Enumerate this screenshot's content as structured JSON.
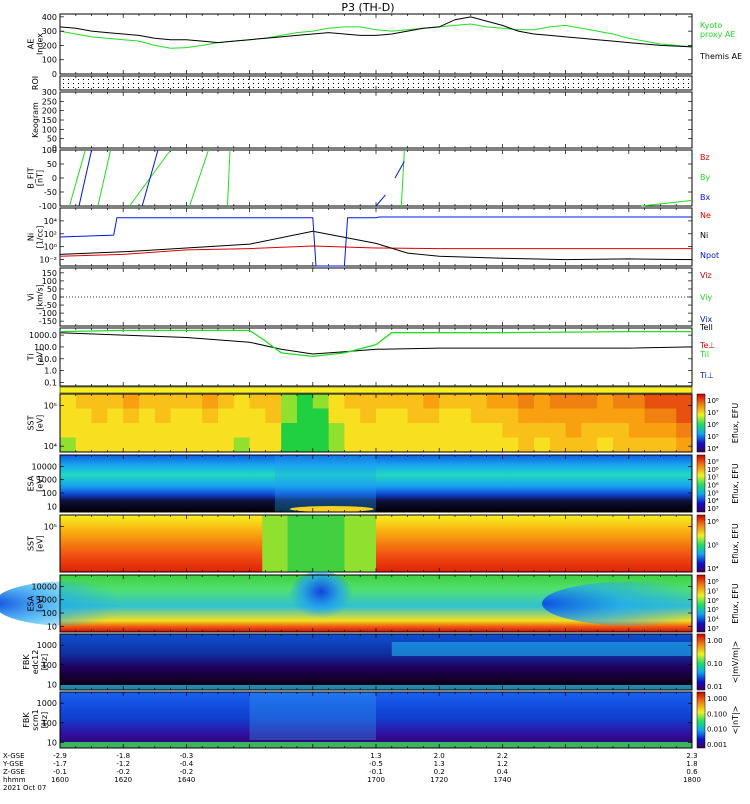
{
  "title": "P3 (TH-D)",
  "colors": {
    "red": "#e00000",
    "green": "#22dd22",
    "blue": "#0018d8",
    "black": "#000000"
  },
  "chart_data": [
    {
      "type": "line",
      "panel": "ae",
      "ylabel": "AE Index",
      "yticks": [
        "400",
        "300",
        "200",
        "100",
        "0"
      ],
      "ylim": [
        0,
        420
      ],
      "series": [
        {
          "name": "Kyoto proxy AE",
          "color": "green",
          "x": [
            1600,
            1605,
            1610,
            1615,
            1620,
            1625,
            1630,
            1635,
            1640,
            1645,
            1650,
            1655,
            1660,
            1665,
            1670,
            1675,
            1680,
            1685,
            1690,
            1695,
            1700,
            1705,
            1710,
            1715,
            1720,
            1725,
            1730,
            1735,
            1740,
            1745,
            1750,
            1755,
            1760,
            1765,
            1770,
            1775,
            1780,
            1785,
            1790,
            1795,
            1800
          ],
          "y": [
            300,
            280,
            260,
            250,
            240,
            230,
            200,
            180,
            185,
            200,
            220,
            230,
            240,
            250,
            270,
            290,
            300,
            320,
            330,
            330,
            310,
            300,
            310,
            320,
            330,
            340,
            350,
            330,
            320,
            310,
            310,
            330,
            340,
            320,
            300,
            280,
            250,
            230,
            210,
            200,
            190
          ]
        },
        {
          "name": "Themis AE",
          "color": "black",
          "x": [
            1600,
            1605,
            1610,
            1615,
            1620,
            1625,
            1630,
            1635,
            1640,
            1645,
            1650,
            1655,
            1660,
            1665,
            1670,
            1675,
            1680,
            1685,
            1690,
            1695,
            1700,
            1705,
            1710,
            1715,
            1720,
            1725,
            1730,
            1735,
            1740,
            1745,
            1750,
            1755,
            1760,
            1765,
            1770,
            1775,
            1780,
            1785,
            1790,
            1795,
            1800
          ],
          "y": [
            330,
            320,
            300,
            290,
            280,
            270,
            250,
            240,
            240,
            230,
            220,
            230,
            240,
            250,
            260,
            270,
            280,
            290,
            280,
            270,
            270,
            280,
            300,
            320,
            330,
            380,
            400,
            370,
            340,
            300,
            280,
            270,
            260,
            250,
            240,
            230,
            220,
            210,
            200,
            195,
            190
          ]
        }
      ]
    },
    {
      "type": "scatter",
      "panel": "roi",
      "ylabel": "ROI"
    },
    {
      "type": "line",
      "panel": "keogram",
      "ylabel": "Keogram",
      "yticks": [
        "300",
        "250",
        "200",
        "150",
        "100",
        "50",
        "0"
      ],
      "ylim": [
        0,
        300
      ]
    },
    {
      "type": "line",
      "panel": "bfit",
      "ylabel": "B_FIT [nT]",
      "yticks": [
        "100",
        "50",
        "0",
        "-50",
        "-100"
      ],
      "ylim": [
        -100,
        100
      ],
      "series": [
        {
          "name": "Bz",
          "color": "red",
          "x": [],
          "y": []
        },
        {
          "name": "By",
          "color": "green",
          "x": [
            1603,
            1608,
            1612,
            1616,
            1622,
            1635,
            1641,
            1647,
            1653,
            1653.8,
            1708,
            1709,
            1784,
            1800
          ],
          "y": [
            -100,
            100,
            -100,
            100,
            -100,
            100,
            -100,
            100,
            -100,
            100,
            -100,
            100,
            -100,
            -80
          ]
        },
        {
          "name": "Bx",
          "color": "blue",
          "x": [
            1606,
            1610,
            1626,
            1631,
            1700,
            1703,
            1706,
            1709,
            1712
          ],
          "y": [
            -100,
            100,
            -100,
            100,
            -100,
            -60,
            0,
            60,
            100
          ]
        }
      ]
    },
    {
      "type": "line",
      "panel": "density",
      "ylabel": "Ni [1/cc]",
      "yticks": [
        "10⁴",
        "10²",
        "10⁰",
        "10⁻²"
      ],
      "ylim_log10": [
        -3,
        6
      ],
      "series": [
        {
          "name": "Ne",
          "color": "red",
          "x": [
            1600,
            1620,
            1640,
            1660,
            1680,
            1700,
            1720,
            1740,
            1760,
            1780,
            1800
          ],
          "y_log10": [
            -1.5,
            -1.2,
            -0.5,
            -0.3,
            0.1,
            -0.2,
            -0.3,
            -0.3,
            -0.3,
            -0.3,
            -0.3
          ]
        },
        {
          "name": "Ni",
          "color": "black",
          "x": [
            1600,
            1620,
            1640,
            1660,
            1680,
            1700,
            1710,
            1720,
            1740,
            1760,
            1780,
            1800
          ],
          "y_log10": [
            -1.2,
            -0.8,
            -0.2,
            0.4,
            2.4,
            0.5,
            -1.0,
            -1.5,
            -1.8,
            -2.0,
            -1.9,
            -2.0
          ]
        },
        {
          "name": "Npot",
          "color": "blue",
          "x": [
            1600,
            1617,
            1618,
            1680,
            1681,
            1690,
            1691,
            1700,
            1701,
            1800
          ],
          "y_log10": [
            1.5,
            1.8,
            4.5,
            4.5,
            -3,
            -3,
            4.5,
            4.5,
            4.6,
            4.6
          ]
        }
      ]
    },
    {
      "type": "line",
      "panel": "velocity",
      "ylabel": "Vi [km/s]",
      "yticks": [
        "150",
        "100",
        "50",
        "0",
        "-50",
        "-100",
        "-150"
      ],
      "ylim": [
        -180,
        180
      ],
      "series": [
        {
          "name": "Viz",
          "color": "red",
          "x": [],
          "y": []
        },
        {
          "name": "Viy",
          "color": "green",
          "x": [],
          "y": []
        },
        {
          "name": "Vix",
          "color": "blue",
          "x": [],
          "y": []
        }
      ]
    },
    {
      "type": "line",
      "panel": "temperature",
      "ylabel": "Ti [eV]",
      "yticks": [
        "1000.0",
        "100.0",
        "10.0",
        "1.0",
        "0.1"
      ],
      "ylim_log10": [
        -1.3,
        3.6
      ],
      "series": [
        {
          "name": "Tell",
          "color": "black",
          "x": [
            1600,
            1620,
            1640,
            1660,
            1670,
            1680,
            1690,
            1700,
            1720,
            1740,
            1760,
            1780,
            1800
          ],
          "y_log10": [
            3.2,
            3.0,
            2.8,
            2.4,
            1.8,
            1.4,
            1.6,
            1.8,
            1.9,
            1.9,
            1.9,
            1.9,
            2.0
          ]
        },
        {
          "name": "Te⊥",
          "color": "red",
          "x": [],
          "y_log10": []
        },
        {
          "name": "Til",
          "color": "green",
          "x": [
            1600,
            1620,
            1660,
            1665,
            1670,
            1680,
            1690,
            1700,
            1705,
            1720,
            1740,
            1760,
            1780,
            1800
          ],
          "y_log10": [
            3.3,
            3.4,
            3.4,
            2.5,
            1.5,
            1.2,
            1.5,
            2.2,
            3.2,
            3.2,
            3.2,
            3.25,
            3.3,
            3.3
          ]
        },
        {
          "name": "Ti⊥",
          "color": "blue",
          "x": [],
          "y_log10": []
        }
      ]
    },
    {
      "type": "heatmap",
      "panel": "sst-electron",
      "ylabel": "SST [eV]",
      "yticks": [
        "10⁵",
        "10⁴"
      ],
      "colorbar": {
        "label": "Eflux, EFU",
        "ticks": [
          "10⁸",
          "10⁷",
          "10⁶",
          "10⁵",
          "10⁴"
        ]
      },
      "timeline_fill": [
        0.55,
        0.6,
        0.62,
        0.6,
        0.65,
        0.6,
        0.62,
        0.58,
        0.6,
        0.65,
        0.6,
        0.55,
        0.6,
        0.62,
        0.4,
        0.3,
        0.35,
        0.5,
        0.6,
        0.62,
        0.6,
        0.6,
        0.62,
        0.65,
        0.6,
        0.58,
        0.62,
        0.65,
        0.66,
        0.7,
        0.68,
        0.7,
        0.72,
        0.7,
        0.68,
        0.7,
        0.72,
        0.74,
        0.75,
        0.78
      ]
    },
    {
      "type": "heatmap",
      "panel": "esa-electron",
      "ylabel": "ESA [eV]",
      "yticks": [
        "10000",
        "1000",
        "100",
        "10"
      ],
      "colorbar": {
        "label": "Eflux, EFU",
        "ticks": [
          "10⁹",
          "10⁸",
          "10⁷",
          "10⁶",
          "10⁵",
          "10⁴",
          "10³"
        ]
      }
    },
    {
      "type": "heatmap",
      "panel": "sst-ion",
      "ylabel": "SST [eV]",
      "yticks": [
        "10⁵"
      ],
      "colorbar": {
        "label": "Eflux, EFU",
        "ticks": [
          "10⁶",
          "10⁵",
          "10⁴"
        ]
      }
    },
    {
      "type": "heatmap",
      "panel": "esa-ion",
      "ylabel": "ESA [eV]",
      "yticks": [
        "10000",
        "1000",
        "100",
        "10"
      ],
      "colorbar": {
        "label": "Eflux, EFU",
        "ticks": [
          "10⁸",
          "10⁷",
          "10⁶",
          "10⁵",
          "10⁴",
          "10³"
        ]
      }
    },
    {
      "type": "heatmap",
      "panel": "fbk-e",
      "ylabel": "FBK edc12 [Hz]",
      "yticks": [
        "1000",
        "100",
        "10"
      ],
      "colorbar": {
        "label": "<|mV/m|>",
        "ticks": [
          "1.00",
          "0.10",
          "0.01"
        ]
      }
    },
    {
      "type": "heatmap",
      "panel": "fbk-b",
      "ylabel": "FBK scm1 [Hz]",
      "yticks": [
        "1000",
        "100",
        "10"
      ],
      "colorbar": {
        "label": "<|nT|>",
        "ticks": [
          "1.000",
          "0.100",
          "0.010",
          "0.001"
        ]
      }
    }
  ],
  "xaxis": {
    "range": [
      1600,
      1800
    ],
    "rows": [
      {
        "label": "X-GSE",
        "values": [
          "-2.9",
          "-1.8",
          "-0.3",
          "1.3",
          "2.0",
          "2.2",
          "2.3"
        ]
      },
      {
        "label": "Y-GSE",
        "values": [
          "-1.7",
          "-1.2",
          "-0.4",
          "-0.5",
          "1.3",
          "1.2",
          "1.8"
        ]
      },
      {
        "label": "Z-GSE",
        "values": [
          "-0.1",
          "-0.2",
          "-0.2",
          "-0.1",
          "0.2",
          "0.4",
          "0.6"
        ]
      },
      {
        "label": "hhmm",
        "values": [
          "1600",
          "1620",
          "1640",
          "1700",
          "1720",
          "1740",
          "1800"
        ]
      }
    ],
    "date": "2021 Oct 07"
  }
}
